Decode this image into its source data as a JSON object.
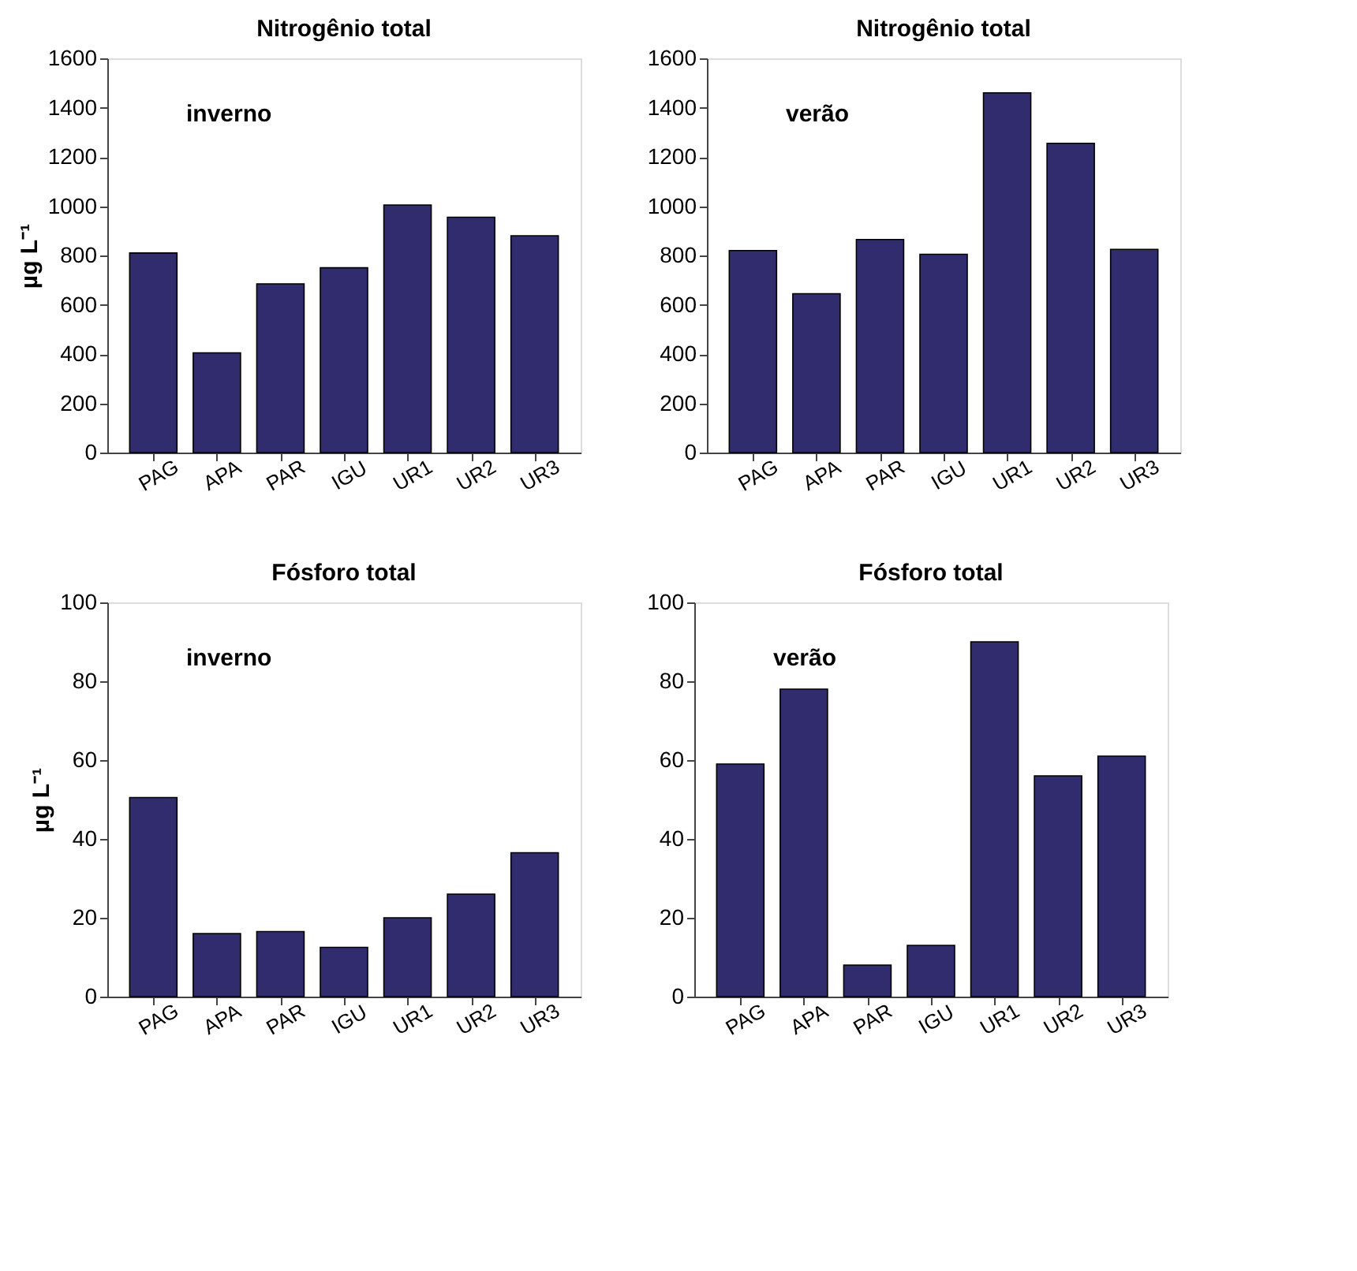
{
  "chart_data": [
    {
      "type": "bar",
      "title": "Nitrogênio total",
      "ylabel": "µg L⁻¹",
      "annotations": [
        "inverno"
      ],
      "categories": [
        "PAG",
        "APA",
        "PAR",
        "IGU",
        "UR1",
        "UR2",
        "UR3"
      ],
      "values": [
        810,
        405,
        685,
        750,
        1005,
        955,
        880
      ],
      "color": "#302c6e",
      "ylim": [
        0,
        1600
      ],
      "yticks": [
        0,
        200,
        400,
        600,
        800,
        1000,
        1200,
        1400,
        1600
      ],
      "grid": false
    },
    {
      "type": "bar",
      "title": "Nitrogênio total",
      "annotations": [
        "verão"
      ],
      "categories": [
        "PAG",
        "APA",
        "PAR",
        "IGU",
        "UR1",
        "UR2",
        "UR3"
      ],
      "values": [
        820,
        645,
        865,
        805,
        1460,
        1255,
        825
      ],
      "color": "#302c6e",
      "ylim": [
        0,
        1600
      ],
      "yticks": [
        0,
        200,
        400,
        600,
        800,
        1000,
        1200,
        1400,
        1600
      ],
      "grid": false
    },
    {
      "type": "bar",
      "title": "Fósforo total",
      "ylabel": "µg L⁻¹",
      "annotations": [
        "inverno"
      ],
      "categories": [
        "PAG",
        "APA",
        "PAR",
        "IGU",
        "UR1",
        "UR2",
        "UR3"
      ],
      "values": [
        50.5,
        16,
        16.5,
        12.5,
        20,
        26,
        36.5
      ],
      "color": "#302c6e",
      "ylim": [
        0,
        100
      ],
      "yticks": [
        0,
        20,
        40,
        60,
        80,
        100
      ],
      "grid": false
    },
    {
      "type": "bar",
      "title": "Fósforo total",
      "annotations": [
        "verão"
      ],
      "categories": [
        "PAG",
        "APA",
        "PAR",
        "IGU",
        "UR1",
        "UR2",
        "UR3"
      ],
      "values": [
        59,
        78,
        8,
        13,
        90,
        56,
        61
      ],
      "color": "#302c6e",
      "ylim": [
        0,
        100
      ],
      "yticks": [
        0,
        20,
        40,
        60,
        80,
        100
      ],
      "grid": false
    }
  ]
}
